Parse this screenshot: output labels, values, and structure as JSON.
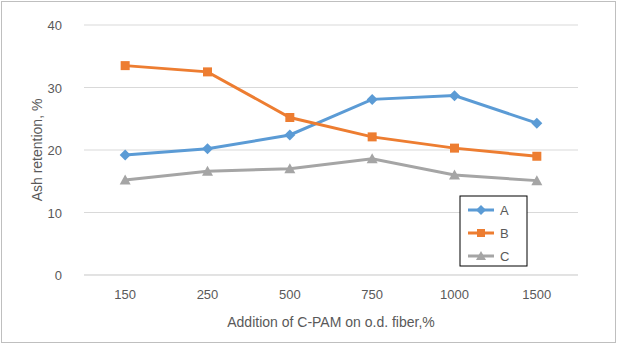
{
  "chart_data": {
    "type": "line",
    "x_label": "Addition of C-PAM on o.d. fiber,%",
    "y_label": "Ash retention, %",
    "categories": [
      "150",
      "250",
      "500",
      "750",
      "1000",
      "1500"
    ],
    "series": [
      {
        "name": "A",
        "color": "#5b9bd5",
        "marker": "diamond",
        "line_style": "solid",
        "values": [
          19.2,
          20.2,
          22.4,
          28.1,
          28.7,
          24.3
        ]
      },
      {
        "name": "B",
        "color": "#ed7d31",
        "marker": "square",
        "line_style": "solid",
        "values": [
          33.5,
          32.5,
          25.2,
          22.1,
          20.3,
          19.0
        ]
      },
      {
        "name": "C",
        "color": "#a5a5a5",
        "marker": "triangle",
        "line_style": "solid",
        "values": [
          15.2,
          16.6,
          17.0,
          18.6,
          16.0,
          15.1
        ]
      }
    ],
    "ylim": [
      0,
      40
    ],
    "yticks": [
      0,
      10,
      20,
      30,
      40
    ],
    "grid": true,
    "legend": "lower right"
  }
}
